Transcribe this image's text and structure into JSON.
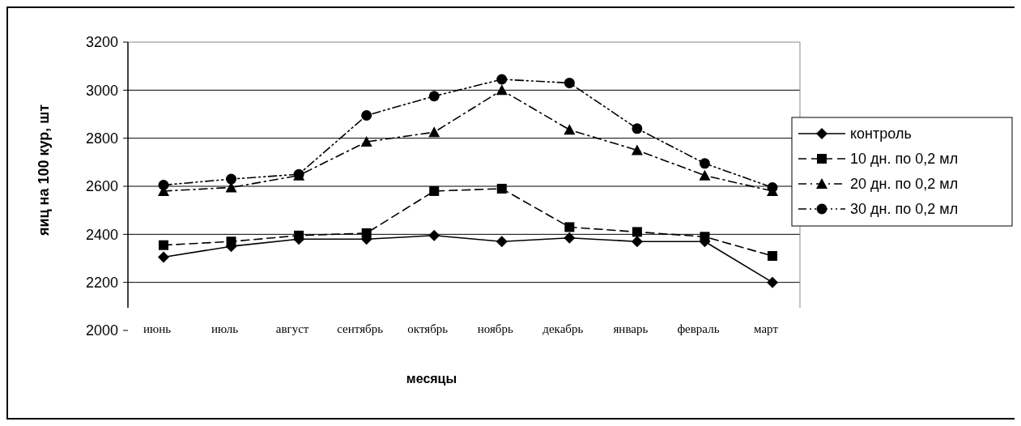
{
  "chart_data": {
    "type": "line",
    "xlabel": "месяцы",
    "ylabel": "яиц на 100 кур, шт",
    "categories": [
      "июнь",
      "июль",
      "август",
      "сентябрь",
      "октябрь",
      "ноябрь",
      "декабрь",
      "январь",
      "февраль",
      "март"
    ],
    "series": [
      {
        "name": "контроль",
        "color": "#000000",
        "marker": "diamond",
        "line_style": "solid",
        "values": [
          2305,
          2350,
          2380,
          2380,
          2395,
          2370,
          2385,
          2370,
          2370,
          2200
        ]
      },
      {
        "name": "10 дн. по 0,2 мл",
        "color": "#000000",
        "marker": "square",
        "line_style": "dashed",
        "values": [
          2355,
          2370,
          2395,
          2405,
          2580,
          2590,
          2430,
          2410,
          2390,
          2310
        ]
      },
      {
        "name": "20 дн. по 0,2 мл",
        "color": "#000000",
        "marker": "triangle",
        "line_style": "dashdot",
        "values": [
          2580,
          2595,
          2645,
          2785,
          2825,
          3000,
          2835,
          2750,
          2645,
          2580
        ]
      },
      {
        "name": "30 дн. по 0,2 мл",
        "color": "#000000",
        "marker": "circle",
        "line_style": "dashdotdot",
        "values": [
          2605,
          2630,
          2650,
          2895,
          2975,
          3045,
          3030,
          2840,
          2695,
          2595
        ]
      }
    ],
    "ylim": [
      2000,
      3200
    ],
    "yticks": [
      2000,
      2200,
      2400,
      2600,
      2800,
      3000,
      3200
    ],
    "grid": "y",
    "legend": "right"
  }
}
